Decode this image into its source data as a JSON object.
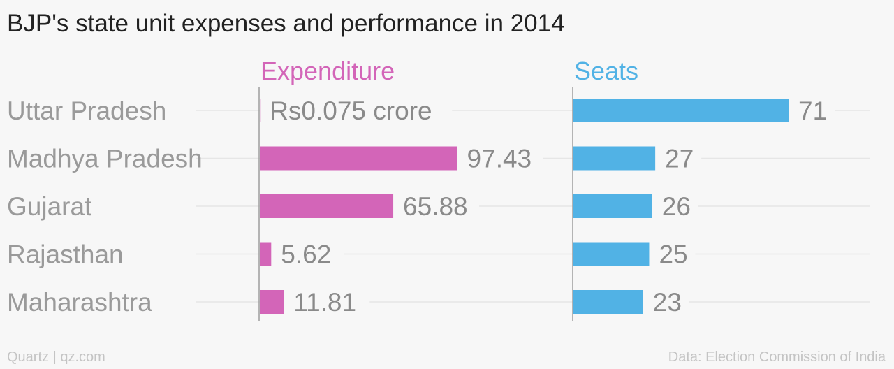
{
  "chart_data": {
    "type": "bar",
    "title": "BJP's state unit expenses and performance in 2014",
    "categories": [
      "Uttar Pradesh",
      "Madhya Pradesh",
      "Gujarat",
      "Rajasthan",
      "Maharashtra"
    ],
    "series": [
      {
        "name": "Expenditure",
        "color": "#d365b8",
        "values": [
          0.075,
          97.43,
          65.88,
          5.62,
          11.81
        ],
        "labels": [
          "Rs0.075 crore",
          "97.43",
          "65.88",
          "5.62",
          "11.81"
        ]
      },
      {
        "name": "Seats",
        "color": "#51b2e5",
        "values": [
          71,
          27,
          26,
          25,
          23
        ],
        "labels": [
          "71",
          "27",
          "26",
          "25",
          "23"
        ]
      }
    ],
    "orientation": "horizontal",
    "grid": true
  },
  "footer": {
    "source": "Quartz | qz.com",
    "credit": "Data: Election Commission of India"
  }
}
